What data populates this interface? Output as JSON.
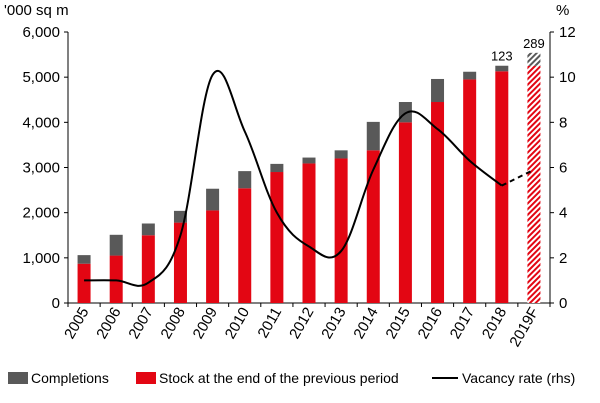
{
  "chart_data": {
    "type": "bar",
    "title": "",
    "left_axis_label": "'000 sq m",
    "right_axis_label": "%",
    "categories": [
      "2005",
      "2006",
      "2007",
      "2008",
      "2009",
      "2010",
      "2011",
      "2012",
      "2013",
      "2014",
      "2015",
      "2016",
      "2017",
      "2018",
      "2019F"
    ],
    "y_left": {
      "min": 0,
      "max": 6000,
      "ticks": [
        "0",
        "1,000",
        "2,000",
        "3,000",
        "4,000",
        "5,000",
        "6,000"
      ]
    },
    "y_right": {
      "min": 0,
      "max": 12,
      "ticks": [
        "0",
        "2",
        "4",
        "6",
        "8",
        "10",
        "12"
      ]
    },
    "series": [
      {
        "name": "Stock at the end of the previous period",
        "kind": "bar_base",
        "color": "#e30613",
        "values": [
          870,
          1050,
          1500,
          1780,
          2050,
          2540,
          2900,
          3090,
          3200,
          3380,
          4000,
          4450,
          4950,
          5130,
          5250
        ]
      },
      {
        "name": "Completions",
        "kind": "bar_stack",
        "color": "#595959",
        "values": [
          190,
          460,
          260,
          260,
          480,
          380,
          180,
          130,
          180,
          630,
          450,
          510,
          170,
          123,
          289
        ]
      },
      {
        "name": "Vacancy rate (rhs)",
        "kind": "line",
        "axis": "right",
        "color": "#000000",
        "values": [
          1.0,
          1.0,
          0.9,
          3.0,
          10.1,
          7.6,
          4.0,
          2.5,
          2.3,
          5.9,
          8.4,
          7.7,
          6.3,
          5.2,
          5.9
        ]
      }
    ],
    "forecast_category": "2019F",
    "data_labels": [
      {
        "category": "2018",
        "text": "123"
      },
      {
        "category": "2019F",
        "text": "289"
      }
    ],
    "legend": {
      "position": "bottom",
      "items": [
        {
          "label": "Completions",
          "color": "#595959",
          "marker": "square"
        },
        {
          "label": "Stock at the end of the previous period",
          "color": "#e30613",
          "marker": "square"
        },
        {
          "label": "Vacancy rate (rhs)",
          "color": "#000000",
          "marker": "line"
        }
      ]
    },
    "grid": false
  }
}
